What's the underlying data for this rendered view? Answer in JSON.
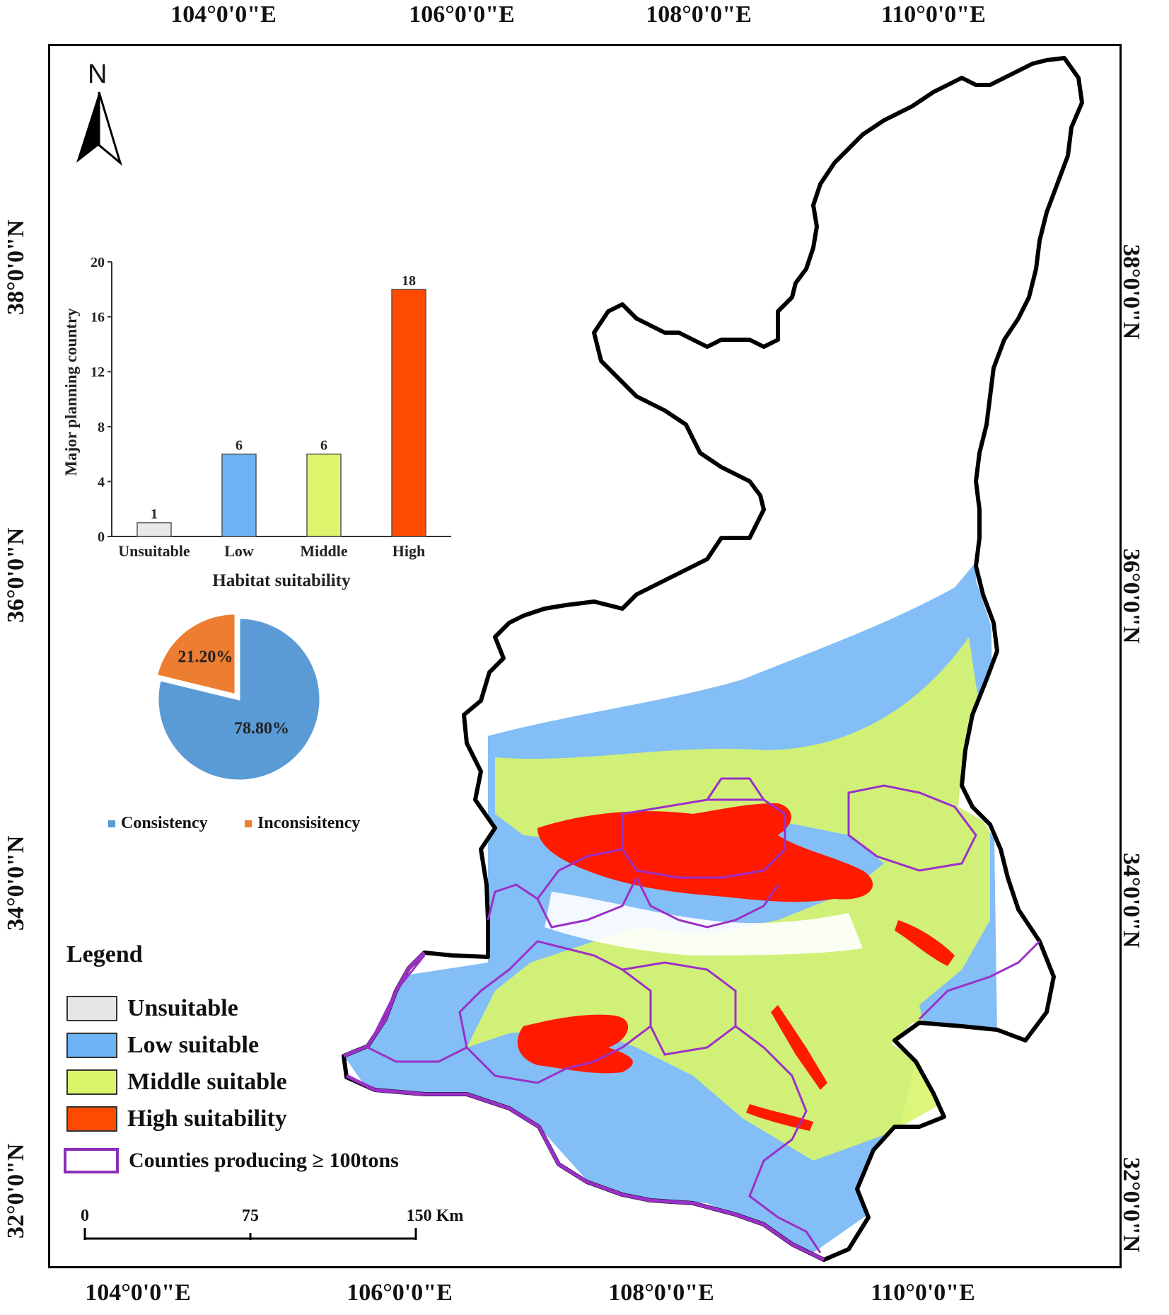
{
  "coordinates": {
    "top": [
      "104°0'0\"E",
      "106°0'0\"E",
      "108°0'0\"E",
      "110°0'0\"E"
    ],
    "bottom": [
      "104°0'0\"E",
      "106°0'0\"E",
      "108°0'0\"E",
      "110°0'0\"E"
    ],
    "left": [
      "38°0'0\"N",
      "36°0'0\"N",
      "34°0'0\"N",
      "32°0'0\"N"
    ],
    "right": [
      "38°0'0\"N",
      "36°0'0\"N",
      "34°0'0\"N",
      "32°0'0\"N"
    ]
  },
  "north_arrow": {
    "label": "N"
  },
  "legend": {
    "title": "Legend",
    "items": [
      {
        "label": "Unsuitable",
        "color": "#e6e6e6"
      },
      {
        "label": "Low suitable",
        "color": "#6db3f5"
      },
      {
        "label": "Middle suitable",
        "color": "#d8f56a"
      },
      {
        "label": "High suitability",
        "color": "#ff4b00"
      },
      {
        "label": "Counties producing ≥ 100tons",
        "color": "#8b2fb8"
      }
    ]
  },
  "scale_bar": {
    "labels": [
      "0",
      "75",
      "150 Km"
    ]
  },
  "map_colors": {
    "boundary": "#000000",
    "low": "#6db3f5",
    "middle": "#d8f56a",
    "high": "#ff1a00",
    "county": "#9b30c8"
  },
  "chart_data": [
    {
      "type": "bar",
      "categories": [
        "Unsuitable",
        "Low",
        "Middle",
        "High"
      ],
      "values": [
        1,
        6,
        6,
        18
      ],
      "colors": [
        "#e8e8e8",
        "#6db3f5",
        "#dcf56c",
        "#ff4b00"
      ],
      "xlabel": "Habitat suitability",
      "ylabel": "Major planning country",
      "yticks": [
        "0",
        "4",
        "8",
        "12",
        "16",
        "20"
      ],
      "ylim": [
        0,
        20
      ]
    },
    {
      "type": "pie",
      "slices": [
        {
          "label": "Consistency",
          "value": 78.8,
          "text": "78.80%",
          "color": "#5b9bd5"
        },
        {
          "label": "Inconsisitency",
          "value": 21.2,
          "text": "21.20%",
          "color": "#ed7d31"
        }
      ]
    }
  ]
}
